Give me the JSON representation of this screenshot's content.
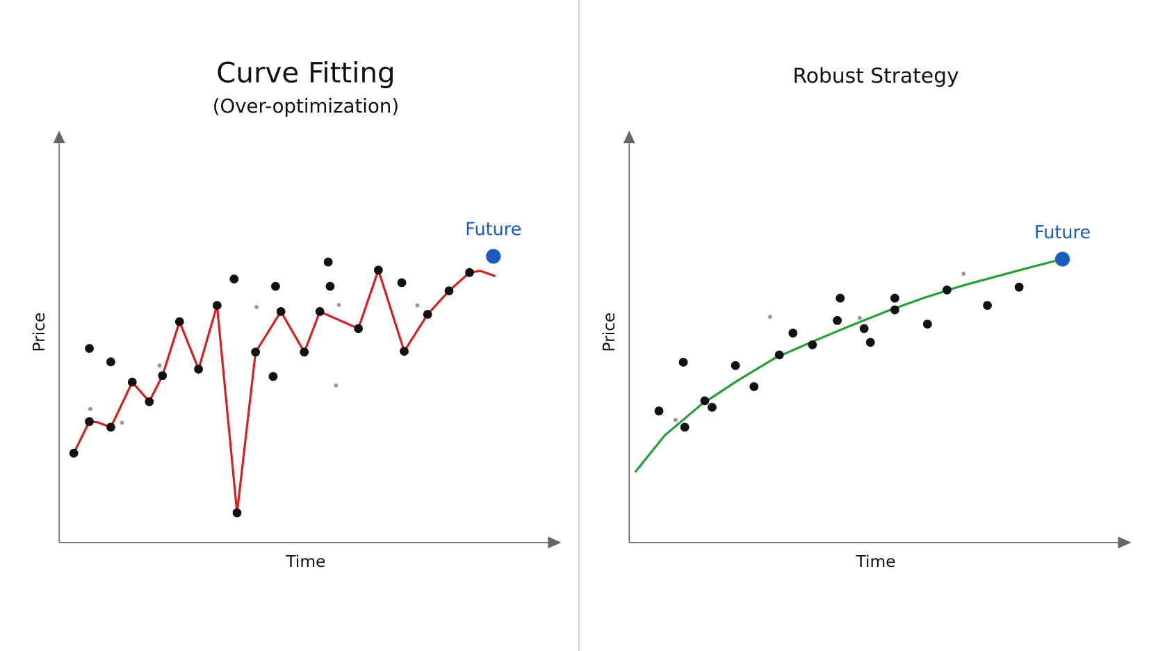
{
  "chart_data": [
    {
      "type": "line",
      "title": "Curve Fitting",
      "subtitle": "(Over-optimization)",
      "xlabel": "Time",
      "ylabel": "Price",
      "xlim": [
        0,
        100
      ],
      "ylim": [
        0,
        100
      ],
      "series": [
        {
          "style": "line",
          "color": "#d62020",
          "x": [
            3.0,
            6.2,
            7.9,
            10.6,
            15.0,
            18.5,
            21.2,
            24.7,
            28.6,
            32.4,
            36.5,
            40.3,
            45.5,
            50.3,
            53.5,
            61.4,
            65.5,
            70.8,
            75.6,
            80.0,
            84.2,
            86.4,
            89.5
          ],
          "values": [
            22.0,
            29.8,
            29.6,
            28.4,
            39.5,
            34.7,
            41.1,
            54.4,
            42.7,
            58.4,
            7.3,
            46.9,
            56.9,
            46.9,
            56.9,
            52.7,
            67.1,
            47.1,
            56.2,
            62.0,
            66.5,
            66.9,
            65.6
          ]
        },
        {
          "style": "dots",
          "color": "#111111",
          "x": [
            3.0,
            6.2,
            10.6,
            15.0,
            18.5,
            21.2,
            24.7,
            28.6,
            32.4,
            36.5,
            40.3,
            45.5,
            50.3,
            53.5,
            61.4,
            65.5,
            70.8,
            75.6,
            80.0,
            84.2,
            6.2,
            10.6,
            35.9,
            44.4,
            55.2,
            55.6,
            70.3,
            43.9
          ],
          "values": [
            22.0,
            29.8,
            28.4,
            39.5,
            34.7,
            41.1,
            54.4,
            42.7,
            58.4,
            7.3,
            46.9,
            56.9,
            46.9,
            56.9,
            52.7,
            67.1,
            47.1,
            56.2,
            62.0,
            66.5,
            47.8,
            44.5,
            64.9,
            63.1,
            69.1,
            63.1,
            64.0,
            40.9
          ]
        },
        {
          "style": "faint-dots",
          "color": "#999999",
          "x": [
            6.4,
            12.9,
            20.6,
            40.5,
            57.4,
            56.8,
            73.5
          ],
          "values": [
            32.9,
            29.5,
            43.6,
            58.0,
            58.5,
            38.7,
            58.4
          ]
        },
        {
          "style": "highlight",
          "name": "Future",
          "color": "#1a5bbf",
          "x": [
            89.1
          ],
          "values": [
            70.5
          ]
        }
      ]
    },
    {
      "type": "line",
      "title": "Robust Strategy",
      "xlabel": "Time",
      "ylabel": "Price",
      "xlim": [
        0,
        100
      ],
      "ylim": [
        0,
        100
      ],
      "series": [
        {
          "style": "line",
          "color": "#22a033",
          "x": [
            1.2,
            7.3,
            14.8,
            22.4,
            30.0,
            37.6,
            45.2,
            52.7,
            60.3,
            67.9,
            75.5,
            83.0,
            88.8
          ],
          "values": [
            17.3,
            26.4,
            34.0,
            40.0,
            45.5,
            49.5,
            53.3,
            56.9,
            60.2,
            63.1,
            65.6,
            68.0,
            69.8
          ]
        },
        {
          "style": "dots",
          "color": "#111111",
          "x": [
            6.1,
            11.1,
            11.4,
            15.5,
            17.0,
            21.8,
            25.6,
            30.8,
            33.6,
            37.6,
            42.7,
            43.3,
            48.2,
            49.5,
            54.5,
            54.5,
            61.2,
            65.2,
            73.5,
            80.0
          ],
          "values": [
            32.4,
            44.4,
            28.4,
            34.9,
            33.3,
            43.6,
            38.4,
            46.2,
            51.6,
            48.7,
            54.7,
            60.2,
            52.7,
            49.3,
            60.2,
            57.3,
            53.8,
            62.2,
            58.4,
            62.9
          ]
        },
        {
          "style": "faint-dots",
          "color": "#999999",
          "x": [
            28.9,
            9.5,
            47.3,
            68.6
          ],
          "values": [
            55.6,
            30.2,
            55.3,
            66.2
          ]
        },
        {
          "style": "highlight",
          "name": "Future",
          "color": "#1a5bbf",
          "x": [
            88.9
          ],
          "values": [
            69.8
          ]
        }
      ]
    }
  ]
}
